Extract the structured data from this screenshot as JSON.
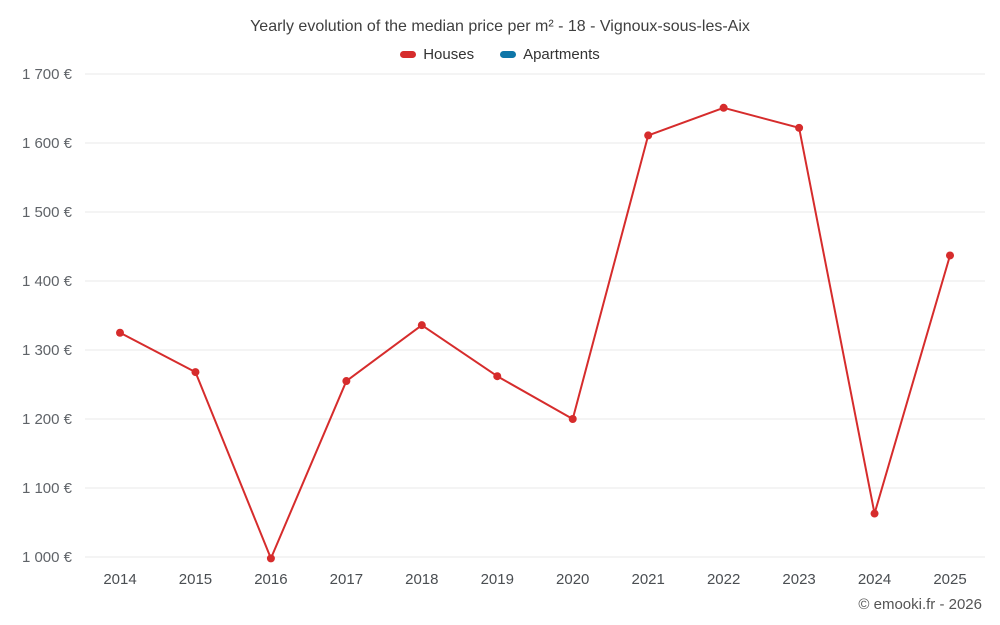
{
  "header": {
    "title": "Yearly evolution of the median price per m² - 18 - Vignoux-sous-les-Aix"
  },
  "footer": {
    "credit": "© emooki.fr - 2026"
  },
  "colors": {
    "houses": "#d62c2c",
    "apartments": "#0e76a8",
    "grid": "#e8e8e8",
    "axis_text": "#5f6368",
    "title_text": "#3f3f3f"
  },
  "chart_data": {
    "type": "line",
    "title": "Yearly evolution of the median price per m² - 18 - Vignoux-sous-les-Aix",
    "categories": [
      "2014",
      "2015",
      "2016",
      "2017",
      "2018",
      "2019",
      "2020",
      "2021",
      "2022",
      "2023",
      "2024",
      "2025"
    ],
    "series": [
      {
        "name": "Houses",
        "color": "#d62c2c",
        "values": [
          1325,
          1268,
          998,
          1255,
          1336,
          1262,
          1200,
          1611,
          1651,
          1622,
          1063,
          1437
        ]
      },
      {
        "name": "Apartments",
        "color": "#0e76a8",
        "values": []
      }
    ],
    "xlabel": "",
    "ylabel": "",
    "ylim": [
      1000,
      1700
    ],
    "ytick_step": 100,
    "y_suffix": " €",
    "grid": "horizontal",
    "legend_position": "top"
  }
}
